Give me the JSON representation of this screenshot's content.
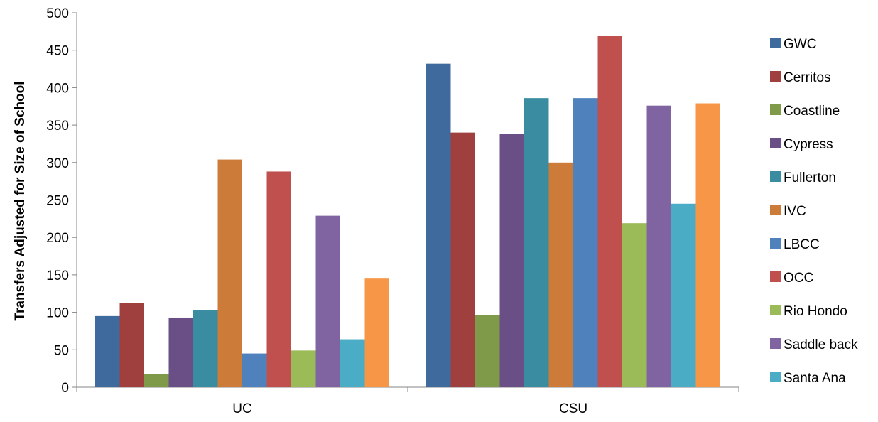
{
  "chart_data": {
    "type": "bar",
    "title": "",
    "xlabel": "",
    "ylabel": "Transfers Adjusted for Size of School",
    "ylim": [
      0,
      500
    ],
    "yticks": [
      0,
      50,
      100,
      150,
      200,
      250,
      300,
      350,
      400,
      450,
      500
    ],
    "categories": [
      "UC",
      "CSU"
    ],
    "grid": false,
    "legend_position": "right",
    "series": [
      {
        "name": "GWC",
        "color": "#3F6A9E",
        "values": [
          95,
          432
        ]
      },
      {
        "name": "Cerritos",
        "color": "#A0403E",
        "values": [
          112,
          340
        ]
      },
      {
        "name": "Coastline",
        "color": "#7F9A48",
        "values": [
          18,
          96
        ]
      },
      {
        "name": "Cypress",
        "color": "#6A4F86",
        "values": [
          93,
          338
        ]
      },
      {
        "name": "Fullerton",
        "color": "#3A8DA0",
        "values": [
          103,
          386
        ]
      },
      {
        "name": "IVC",
        "color": "#CC7B38",
        "values": [
          304,
          300
        ]
      },
      {
        "name": "LBCC",
        "color": "#4F81BD",
        "values": [
          45,
          386
        ]
      },
      {
        "name": "OCC",
        "color": "#C0504D",
        "values": [
          288,
          469
        ]
      },
      {
        "name": "Rio Hondo",
        "color": "#9BBB59",
        "values": [
          49,
          219
        ]
      },
      {
        "name": "Saddle back",
        "color": "#8064A2",
        "values": [
          229,
          376
        ]
      },
      {
        "name": "Santa Ana",
        "color": "#4BACC6",
        "values": [
          64,
          245
        ]
      },
      {
        "name": "",
        "color": "#F79646",
        "values": [
          145,
          379
        ]
      }
    ]
  }
}
